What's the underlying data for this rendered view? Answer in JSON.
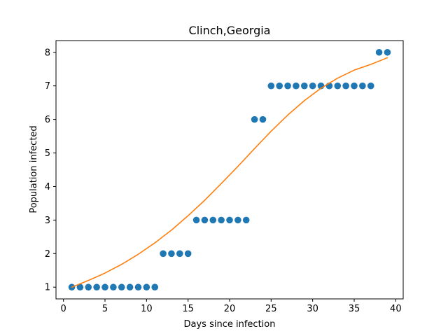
{
  "chart_data": {
    "type": "scatter",
    "title": "Clinch,Georgia",
    "xlabel": "Days since infection",
    "ylabel": "Population infected",
    "xlim": [
      -0.9,
      40.9
    ],
    "ylim": [
      0.65,
      8.35
    ],
    "xticks": [
      0,
      5,
      10,
      15,
      20,
      25,
      30,
      35,
      40
    ],
    "yticks": [
      1,
      2,
      3,
      4,
      5,
      6,
      7,
      8
    ],
    "grid": false,
    "series": [
      {
        "kind": "scatter",
        "color": "#1f77b4",
        "x": [
          1,
          2,
          3,
          4,
          5,
          6,
          7,
          8,
          9,
          10,
          11,
          12,
          13,
          14,
          15,
          16,
          17,
          18,
          19,
          20,
          21,
          22,
          23,
          24,
          25,
          26,
          27,
          28,
          29,
          30,
          31,
          32,
          33,
          34,
          35,
          36,
          37,
          38,
          39
        ],
        "y": [
          1,
          1,
          1,
          1,
          1,
          1,
          1,
          1,
          1,
          1,
          1,
          2,
          2,
          2,
          2,
          3,
          3,
          3,
          3,
          3,
          3,
          3,
          6,
          6,
          7,
          7,
          7,
          7,
          7,
          7,
          7,
          7,
          7,
          7,
          7,
          7,
          7,
          8,
          8
        ]
      },
      {
        "kind": "line",
        "color": "#ff7f0e",
        "x": [
          1,
          3,
          5,
          7,
          9,
          11,
          13,
          15,
          17,
          19,
          21,
          23,
          25,
          27,
          29,
          31,
          33,
          35,
          37,
          39
        ],
        "y": [
          1.0,
          1.2,
          1.42,
          1.68,
          1.98,
          2.32,
          2.7,
          3.13,
          3.59,
          4.09,
          4.6,
          5.13,
          5.65,
          6.13,
          6.56,
          6.93,
          7.23,
          7.47,
          7.64,
          7.84
        ]
      }
    ]
  }
}
